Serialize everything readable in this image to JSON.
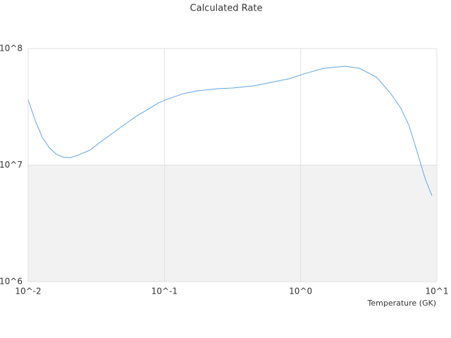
{
  "chart_data": {
    "type": "line",
    "title": "Calculated Rate",
    "x_label": "Temperature (GK)",
    "log_x": true,
    "log_y": true,
    "alternate_bands": true,
    "xlim": [
      0.01,
      10
    ],
    "ylim": [
      1000000,
      100000000
    ],
    "xticks": [
      {
        "value": 0.01,
        "label": "10^-2"
      },
      {
        "value": 0.1,
        "label": "10^-1"
      },
      {
        "value": 1,
        "label": "10^0"
      },
      {
        "value": 10,
        "label": "10^1"
      }
    ],
    "yticks": [
      {
        "value": 1000000,
        "label": "10^6"
      },
      {
        "value": 10000000,
        "label": "10^7"
      },
      {
        "value": 100000000,
        "label": "10^8"
      }
    ],
    "x": [
      0.01,
      0.0113,
      0.0127,
      0.0143,
      0.0161,
      0.0181,
      0.0204,
      0.023,
      0.0285,
      0.0349,
      0.0418,
      0.0517,
      0.0635,
      0.0776,
      0.0906,
      0.108,
      0.137,
      0.174,
      0.249,
      0.316,
      0.45,
      0.572,
      0.816,
      1.1,
      1.48,
      2.12,
      2.7,
      3.63,
      4.62,
      5.41,
      6.24,
      7.22,
      8.24,
      9.2
    ],
    "series": [
      {
        "color": "#5ea6e9",
        "values": [
          36200000,
          23900000,
          17300000,
          14100000,
          12400000,
          11700000,
          11600000,
          12100000,
          13500000,
          16200000,
          18800000,
          22600000,
          26700000,
          30600000,
          34300000,
          37200000,
          41000000,
          43400000,
          45300000,
          45900000,
          47800000,
          50600000,
          55000000,
          61500000,
          67700000,
          70600000,
          67700000,
          56500000,
          40500000,
          31100000,
          21900000,
          12600000,
          7520000,
          5460000
        ]
      }
    ]
  }
}
